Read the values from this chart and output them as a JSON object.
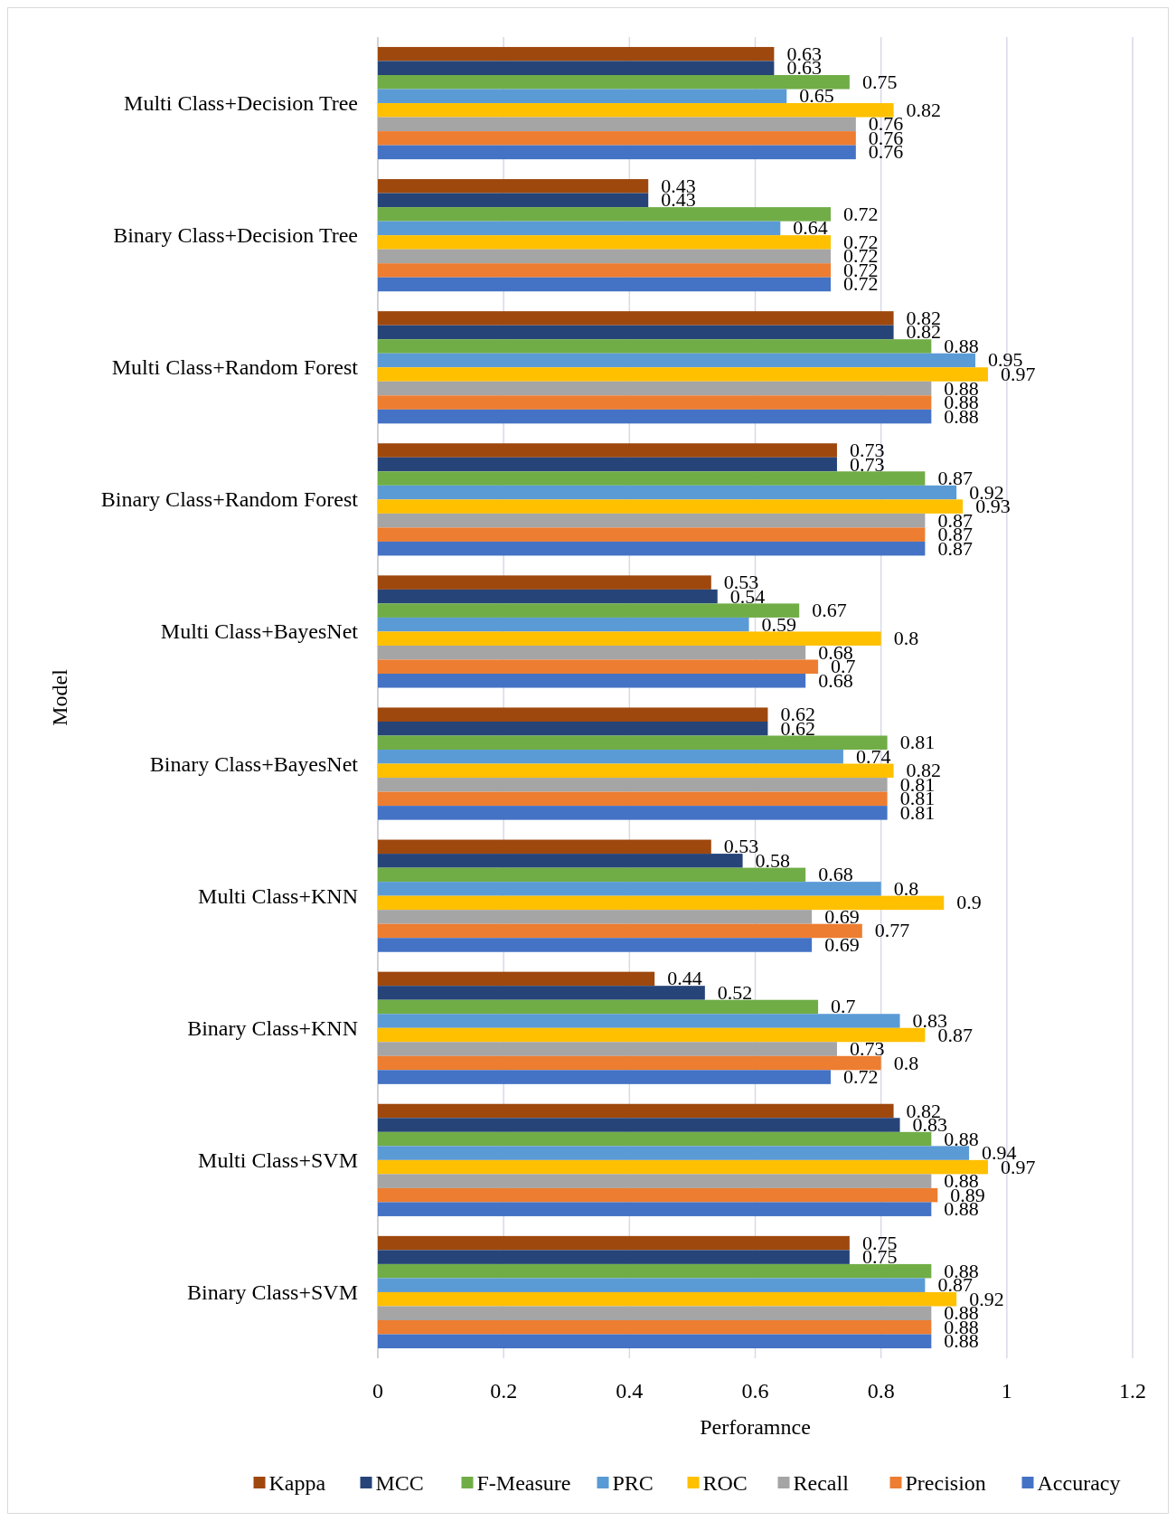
{
  "chart_data": {
    "type": "bar",
    "orientation": "horizontal",
    "xlabel": "Perforamnce",
    "ylabel": "Model",
    "categories": [
      "Multi Class+Decision Tree",
      "Binary Class+Decision Tree",
      "Multi Class+Random Forest",
      "Binary Class+Random Forest",
      "Multi Class+BayesNet",
      "Binary Class+BayesNet",
      "Multi Class+KNN",
      "Binary Class+KNN",
      "Multi Class+SVM",
      "Binary Class+SVM"
    ],
    "series": [
      {
        "name": "Kappa",
        "color": "#9e480e",
        "values": [
          0.63,
          0.43,
          0.82,
          0.73,
          0.53,
          0.62,
          0.53,
          0.44,
          0.82,
          0.75
        ]
      },
      {
        "name": "MCC",
        "color": "#264478",
        "values": [
          0.63,
          0.43,
          0.82,
          0.73,
          0.54,
          0.62,
          0.58,
          0.52,
          0.83,
          0.75
        ]
      },
      {
        "name": "F-Measure",
        "color": "#70ad47",
        "values": [
          0.75,
          0.72,
          0.88,
          0.87,
          0.67,
          0.81,
          0.68,
          0.7,
          0.88,
          0.88
        ]
      },
      {
        "name": "PRC",
        "color": "#5b9bd5",
        "values": [
          0.65,
          0.64,
          0.95,
          0.92,
          0.59,
          0.74,
          0.8,
          0.83,
          0.94,
          0.87
        ]
      },
      {
        "name": "ROC",
        "color": "#ffc000",
        "values": [
          0.82,
          0.72,
          0.97,
          0.93,
          0.8,
          0.82,
          0.9,
          0.87,
          0.97,
          0.92
        ]
      },
      {
        "name": "Recall",
        "color": "#a5a5a5",
        "values": [
          0.76,
          0.72,
          0.88,
          0.87,
          0.68,
          0.81,
          0.69,
          0.73,
          0.88,
          0.88
        ]
      },
      {
        "name": "Precision",
        "color": "#ed7d31",
        "values": [
          0.76,
          0.72,
          0.88,
          0.87,
          0.7,
          0.81,
          0.77,
          0.8,
          0.89,
          0.88
        ]
      },
      {
        "name": "Accuracy",
        "color": "#4472c4",
        "values": [
          0.76,
          0.72,
          0.88,
          0.87,
          0.68,
          0.81,
          0.69,
          0.72,
          0.88,
          0.88
        ]
      }
    ],
    "xlim": [
      0,
      1.2
    ],
    "xticks": [
      0,
      0.2,
      0.4,
      0.6,
      0.8,
      1,
      1.2
    ],
    "grid": "x",
    "legend": "bottom",
    "data_labels": true
  }
}
